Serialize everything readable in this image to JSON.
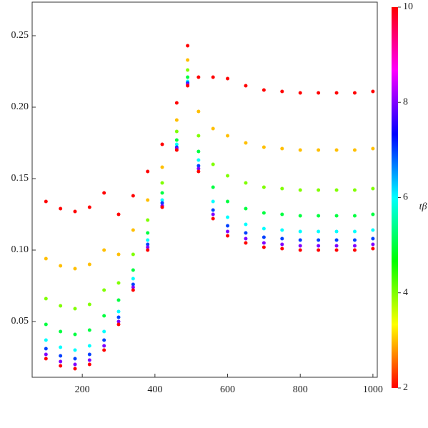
{
  "chart_data": {
    "type": "scatter",
    "xlim": [
      62,
      1012
    ],
    "ylim": [
      0.011,
      0.2735
    ],
    "xticks": [
      200,
      400,
      600,
      800,
      1000
    ],
    "yticks": [
      0.05,
      {
        "value": 0.1,
        "label": "0.10"
      },
      0.15,
      {
        "value": 0.2,
        "label": "0.20"
      },
      0.25
    ],
    "colorbar": {
      "label": "tβ",
      "clim": [
        2,
        10
      ],
      "ticks": [
        2,
        4,
        6,
        8,
        10
      ]
    },
    "series": [
      {
        "x": [
          100,
          100,
          100,
          100,
          100,
          100,
          100,
          100,
          140,
          140,
          140,
          140,
          140,
          140,
          140,
          140,
          180,
          180,
          180,
          180,
          180,
          180,
          180,
          180,
          220,
          220,
          220,
          220,
          220,
          220,
          220,
          220,
          260,
          260,
          260,
          260,
          260,
          260,
          260,
          260,
          300,
          300,
          300,
          300,
          300,
          300,
          300,
          300,
          340,
          340,
          340,
          340,
          340,
          340,
          340,
          340,
          380,
          380,
          380,
          380,
          380,
          380,
          380,
          380,
          420,
          420,
          420,
          420,
          420,
          420,
          420,
          420,
          460,
          460,
          460,
          460,
          460,
          460,
          460,
          460,
          490,
          490,
          490,
          490,
          490,
          490,
          490,
          490,
          520,
          520,
          520,
          520,
          520,
          520,
          520,
          520,
          560,
          560,
          560,
          560,
          560,
          560,
          560,
          560,
          600,
          600,
          600,
          600,
          600,
          600,
          600,
          600,
          650,
          650,
          650,
          650,
          650,
          650,
          650,
          650,
          700,
          700,
          700,
          700,
          700,
          700,
          700,
          700,
          750,
          750,
          750,
          750,
          750,
          750,
          750,
          750,
          800,
          800,
          800,
          800,
          800,
          800,
          800,
          800,
          850,
          850,
          850,
          850,
          850,
          850,
          850,
          850,
          900,
          900,
          900,
          900,
          900,
          900,
          900,
          900,
          950,
          950,
          950,
          950,
          950,
          950,
          950,
          950,
          1000,
          1000,
          1000,
          1000,
          1000,
          1000,
          1000,
          1000
        ],
        "y": [
          0.134,
          0.094,
          0.066,
          0.048,
          0.037,
          0.031,
          0.027,
          0.024,
          0.129,
          0.089,
          0.061,
          0.043,
          0.032,
          0.026,
          0.022,
          0.019,
          0.127,
          0.087,
          0.059,
          0.041,
          0.03,
          0.024,
          0.02,
          0.017,
          0.13,
          0.09,
          0.062,
          0.044,
          0.033,
          0.027,
          0.023,
          0.02,
          0.14,
          0.1,
          0.072,
          0.054,
          0.043,
          0.037,
          0.033,
          0.03,
          0.125,
          0.097,
          0.077,
          0.065,
          0.057,
          0.053,
          0.05,
          0.048,
          0.138,
          0.114,
          0.097,
          0.086,
          0.08,
          0.076,
          0.074,
          0.072,
          0.155,
          0.135,
          0.121,
          0.112,
          0.107,
          0.104,
          0.102,
          0.1,
          0.174,
          0.158,
          0.147,
          0.14,
          0.135,
          0.133,
          0.131,
          0.13,
          0.203,
          0.191,
          0.183,
          0.177,
          0.174,
          0.172,
          0.171,
          0.17,
          0.243,
          0.233,
          0.226,
          0.221,
          0.218,
          0.217,
          0.216,
          0.215,
          0.221,
          0.197,
          0.18,
          0.169,
          0.163,
          0.159,
          0.157,
          0.155,
          0.221,
          0.185,
          0.16,
          0.144,
          0.134,
          0.128,
          0.125,
          0.122,
          0.22,
          0.18,
          0.152,
          0.134,
          0.123,
          0.117,
          0.113,
          0.11,
          0.215,
          0.175,
          0.147,
          0.129,
          0.118,
          0.112,
          0.108,
          0.105,
          0.212,
          0.172,
          0.144,
          0.126,
          0.115,
          0.109,
          0.105,
          0.102,
          0.211,
          0.171,
          0.143,
          0.125,
          0.114,
          0.108,
          0.104,
          0.101,
          0.21,
          0.17,
          0.142,
          0.124,
          0.113,
          0.107,
          0.103,
          0.1,
          0.21,
          0.17,
          0.142,
          0.124,
          0.113,
          0.107,
          0.103,
          0.1,
          0.21,
          0.17,
          0.142,
          0.124,
          0.113,
          0.107,
          0.103,
          0.1,
          0.21,
          0.17,
          0.142,
          0.124,
          0.113,
          0.107,
          0.103,
          0.1,
          0.211,
          0.171,
          0.143,
          0.125,
          0.114,
          0.108,
          0.104,
          0.101
        ],
        "c": [
          2,
          3,
          4,
          5,
          6,
          7,
          8,
          10,
          2,
          3,
          4,
          5,
          6,
          7,
          8,
          10,
          2,
          3,
          4,
          5,
          6,
          7,
          8,
          10,
          2,
          3,
          4,
          5,
          6,
          7,
          8,
          10,
          2,
          3,
          4,
          5,
          6,
          7,
          8,
          10,
          2,
          3,
          4,
          5,
          6,
          7,
          8,
          10,
          2,
          3,
          4,
          5,
          6,
          7,
          8,
          10,
          2,
          3,
          4,
          5,
          6,
          7,
          8,
          10,
          2,
          3,
          4,
          5,
          6,
          7,
          8,
          10,
          2,
          3,
          4,
          5,
          6,
          7,
          8,
          10,
          2,
          3,
          4,
          5,
          6,
          7,
          8,
          10,
          2,
          3,
          4,
          5,
          6,
          7,
          8,
          10,
          2,
          3,
          4,
          5,
          6,
          7,
          8,
          10,
          2,
          3,
          4,
          5,
          6,
          7,
          8,
          10,
          2,
          3,
          4,
          5,
          6,
          7,
          8,
          10,
          2,
          3,
          4,
          5,
          6,
          7,
          8,
          10,
          2,
          3,
          4,
          5,
          6,
          7,
          8,
          10,
          2,
          3,
          4,
          5,
          6,
          7,
          8,
          10,
          2,
          3,
          4,
          5,
          6,
          7,
          8,
          10,
          2,
          3,
          4,
          5,
          6,
          7,
          8,
          10,
          2,
          3,
          4,
          5,
          6,
          7,
          8,
          10,
          2,
          3,
          4,
          5,
          6,
          7,
          8,
          10
        ]
      }
    ]
  }
}
